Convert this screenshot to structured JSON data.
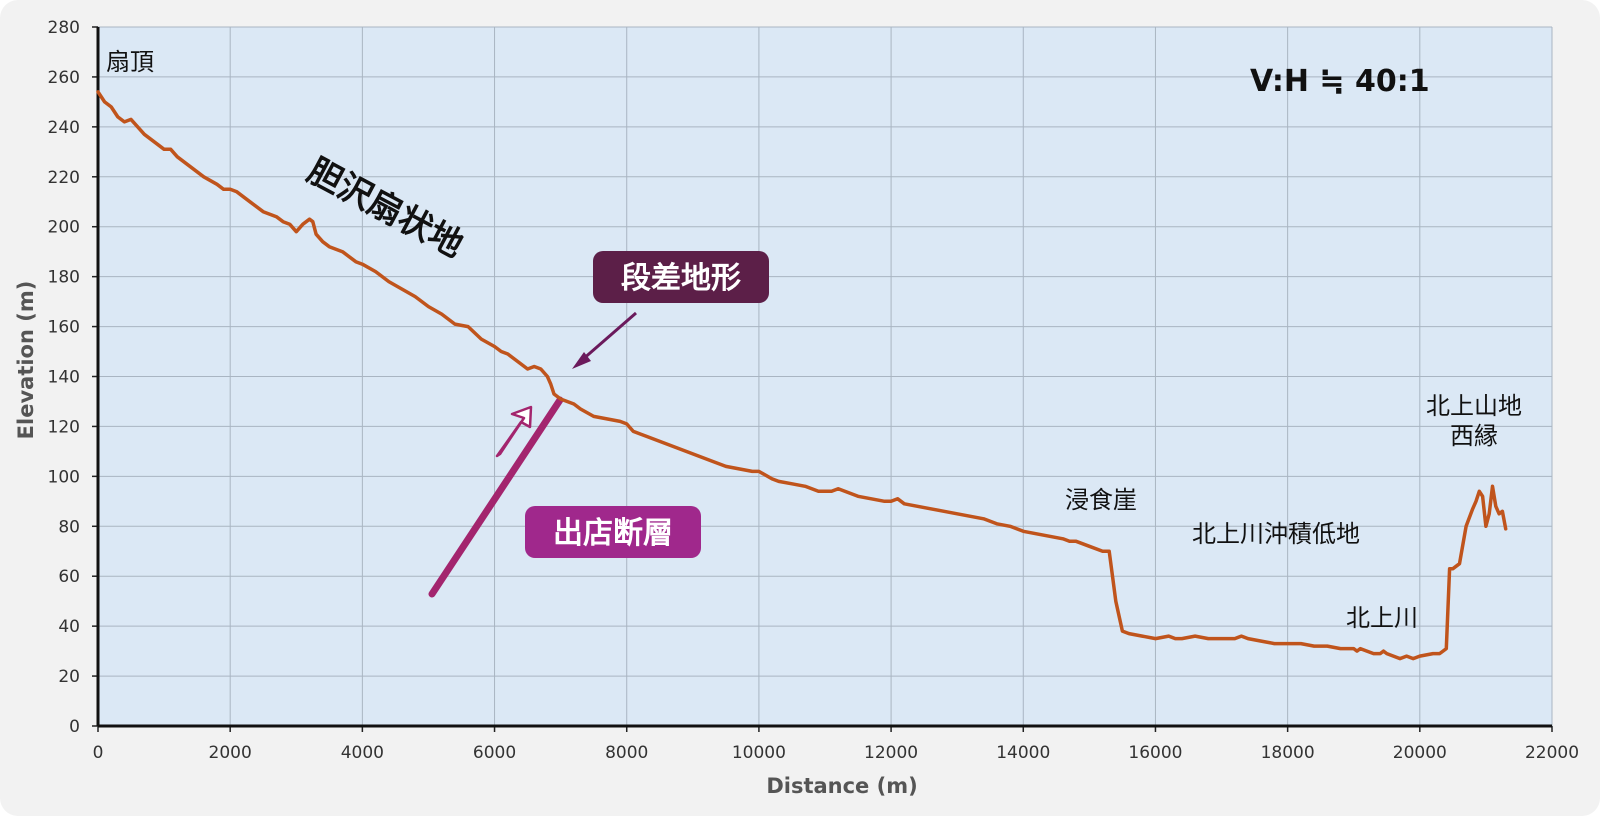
{
  "chart_data": {
    "type": "line",
    "xlabel": "Distance (m)",
    "ylabel": "Elevation (m)",
    "xlim": [
      0,
      22000
    ],
    "ylim": [
      0,
      280
    ],
    "x_ticks": [
      0,
      2000,
      4000,
      6000,
      8000,
      10000,
      12000,
      14000,
      16000,
      18000,
      20000,
      22000
    ],
    "y_ticks": [
      0,
      20,
      40,
      60,
      80,
      100,
      120,
      140,
      160,
      180,
      200,
      220,
      240,
      260,
      280
    ],
    "grid": true,
    "line_color": "#c0541c",
    "plot_background": "#dbe8f5",
    "series": [
      {
        "x": [
          0,
          100,
          200,
          300,
          400,
          500,
          700,
          900,
          1000,
          1100,
          1200,
          1400,
          1600,
          1800,
          1900,
          2000,
          2100,
          2300,
          2500,
          2700,
          2800,
          2900,
          3000,
          3100,
          3200,
          3250,
          3300,
          3400,
          3500,
          3700,
          3900,
          4000,
          4200,
          4400,
          4600,
          4800,
          5000,
          5200,
          5400,
          5600,
          5800,
          6000,
          6100,
          6200,
          6400,
          6500,
          6600,
          6700,
          6800,
          6850,
          6900,
          7000,
          7100,
          7200,
          7300,
          7500,
          7700,
          7900,
          8000,
          8100,
          8200,
          8300,
          8500,
          8700,
          8900,
          9100,
          9300,
          9500,
          9700,
          9900,
          10000,
          10200,
          10300,
          10500,
          10700,
          10900,
          11100,
          11200,
          11300,
          11400,
          11500,
          11700,
          11900,
          12000,
          12100,
          12200,
          12400,
          12600,
          12800,
          13000,
          13200,
          13400,
          13600,
          13800,
          14000,
          14200,
          14400,
          14600,
          14700,
          14800,
          15000,
          15200,
          15300,
          15350,
          15400,
          15500,
          15600,
          15800,
          16000,
          16200,
          16300,
          16400,
          16600,
          16800,
          17000,
          17200,
          17300,
          17400,
          17600,
          17800,
          18000,
          18200,
          18400,
          18600,
          18800,
          18900,
          19000,
          19050,
          19100,
          19200,
          19300,
          19350,
          19400,
          19450,
          19500,
          19600,
          19700,
          19800,
          19900,
          20000,
          20200,
          20300,
          20350,
          20400,
          20450,
          20500,
          20600,
          20700,
          20800,
          20850,
          20900,
          20950,
          21000,
          21050,
          21100,
          21150,
          21200,
          21250,
          21300
        ],
        "y": [
          254,
          250,
          248,
          244,
          242,
          243,
          237,
          233,
          231,
          231,
          228,
          224,
          220,
          217,
          215,
          215,
          214,
          210,
          206,
          204,
          202,
          201,
          198,
          201,
          203,
          202,
          197,
          194,
          192,
          190,
          186,
          185,
          182,
          178,
          175,
          172,
          168,
          165,
          161,
          160,
          155,
          152,
          150,
          149,
          145,
          143,
          144,
          143,
          140,
          137,
          133,
          131,
          130,
          129,
          127,
          124,
          123,
          122,
          121,
          118,
          117,
          116,
          114,
          112,
          110,
          108,
          106,
          104,
          103,
          102,
          102,
          99,
          98,
          97,
          96,
          94,
          94,
          95,
          94,
          93,
          92,
          91,
          90,
          90,
          91,
          89,
          88,
          87,
          86,
          85,
          84,
          83,
          81,
          80,
          78,
          77,
          76,
          75,
          74,
          74,
          72,
          70,
          70,
          60,
          50,
          38,
          37,
          36,
          35,
          36,
          35,
          35,
          36,
          35,
          35,
          35,
          36,
          35,
          34,
          33,
          33,
          33,
          32,
          32,
          31,
          31,
          31,
          30,
          31,
          30,
          29,
          29,
          29,
          30,
          29,
          28,
          27,
          28,
          27,
          28,
          29,
          29,
          30,
          31,
          63,
          63,
          65,
          80,
          87,
          90,
          94,
          92,
          80,
          85,
          96,
          88,
          85,
          86,
          79
        ]
      }
    ],
    "annotations": {
      "fan_top": "扇頂",
      "fan_name": "胆沢扇状地",
      "ratio": "V:H ≒ 40:1",
      "terrace": "段差地形",
      "fault": "出店断層",
      "cliff": "浸食崖",
      "lowland": "北上川沖積低地",
      "river": "北上川",
      "mountains_line1": "北上山地",
      "mountains_line2": "西縁"
    },
    "colors": {
      "terrace_box": "#5c1f48",
      "fault_box": "#a0288c",
      "fault_line": "#a3256e",
      "arrow": "#6b1a5c"
    }
  }
}
